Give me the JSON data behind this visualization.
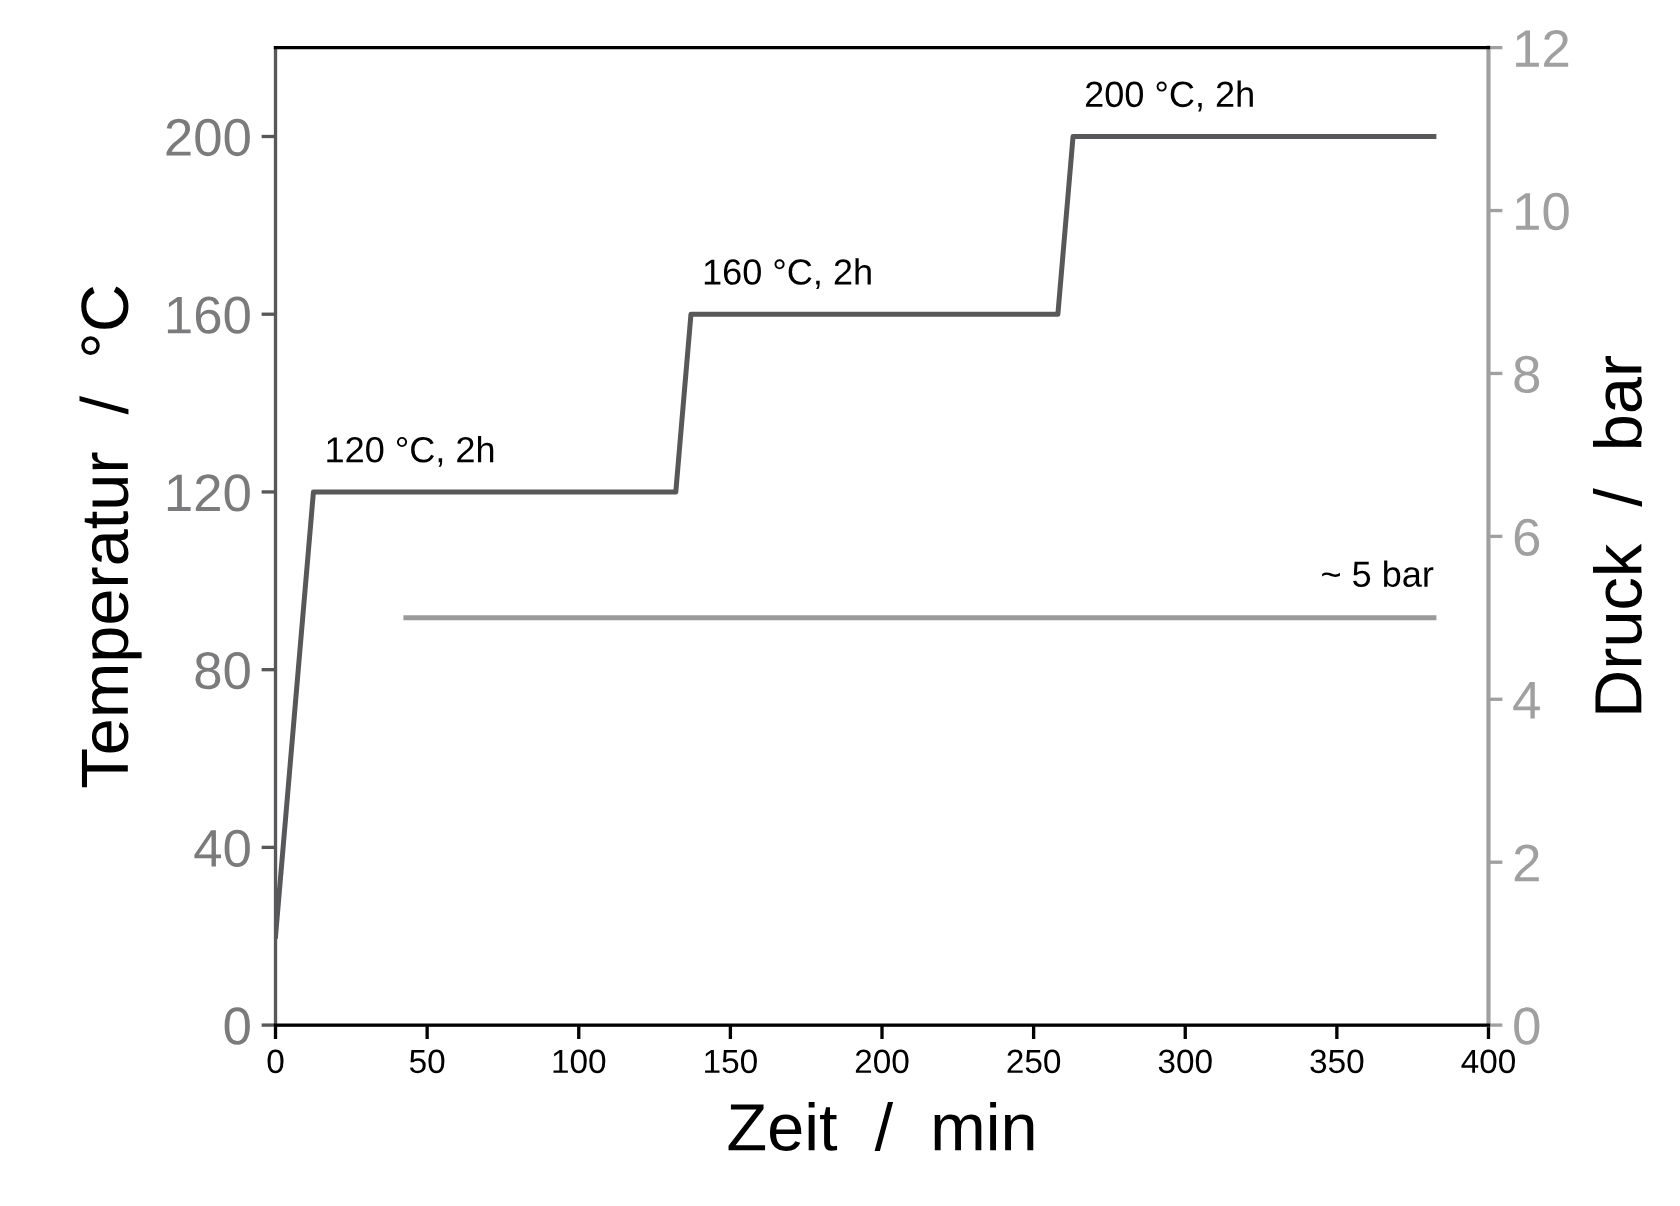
{
  "chart_data": {
    "type": "line",
    "xlabel": "Zeit  /  min",
    "ylabel": "Temperatur  /  °C",
    "y2label": "Druck  /  bar",
    "xlim": [
      0,
      400
    ],
    "xticks": [
      0,
      50,
      100,
      150,
      200,
      250,
      300,
      350,
      400
    ],
    "ylim": [
      0,
      220
    ],
    "yticks": [
      0,
      40,
      80,
      120,
      160,
      200
    ],
    "y2lim": [
      0,
      12
    ],
    "y2ticks": [
      0,
      2,
      4,
      6,
      8,
      10,
      12
    ],
    "series": [
      {
        "color": "#58585a",
        "x": [
          0,
          12.5,
          132,
          137,
          258,
          263,
          382
        ],
        "values": [
          20,
          120,
          120,
          160,
          160,
          200,
          200
        ]
      },
      {
        "color": "#9a9a9a",
        "axis": "y2",
        "x": [
          43,
          382
        ],
        "values": [
          5,
          5
        ]
      }
    ],
    "annotations": [
      {
        "text": "120 °C, 2h",
        "x": 12.5,
        "y": 120
      },
      {
        "text": "160 °C, 2h",
        "x": 137,
        "y": 160
      },
      {
        "text": "200 °C, 2h",
        "x": 263,
        "y": 200
      },
      {
        "text": "~ 5 bar",
        "x": 382,
        "y": 92
      }
    ],
    "grid": false,
    "legend": false
  }
}
